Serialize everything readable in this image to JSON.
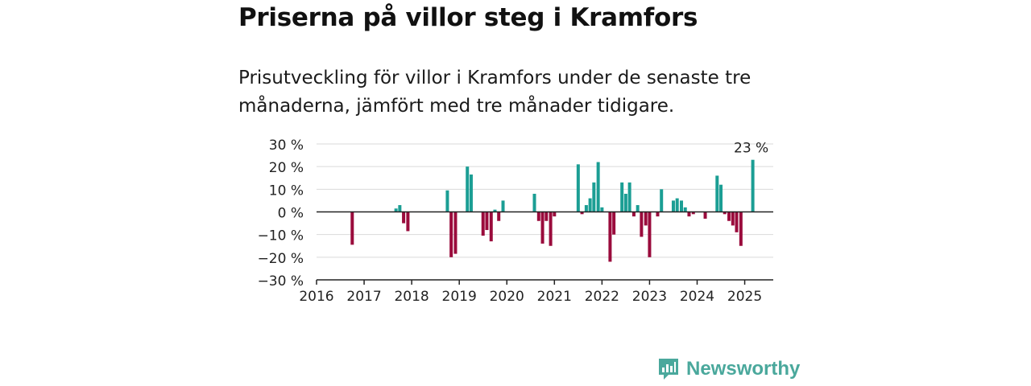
{
  "header": {
    "title": "Priserna på villor steg i Kramfors",
    "subtitle": "Prisutveckling för villor i Kramfors under de senaste tre månaderna, jämfört med tre månader tidigare."
  },
  "brand": {
    "name": "Newsworthy",
    "icon": "bar-chart-logo-icon",
    "color": "#4aa89c"
  },
  "colors": {
    "positive": "#1b9e94",
    "negative": "#9a0b3c",
    "grid": "#d9d9d9",
    "axis": "#222222"
  },
  "chart_data": {
    "type": "bar",
    "title": "Priserna på villor steg i Kramfors",
    "ylim": [
      -30,
      30
    ],
    "yticks": [
      30,
      20,
      10,
      0,
      -10,
      -20,
      -30
    ],
    "ytick_labels": [
      "30 %",
      "20 %",
      "10 %",
      "0 %",
      "−10 %",
      "−20 %",
      "−30 %"
    ],
    "xlim": [
      2016.0,
      2025.6
    ],
    "xticks": [
      "2016",
      "2017",
      "2018",
      "2019",
      "2020",
      "2021",
      "2022",
      "2023",
      "2024",
      "2025"
    ],
    "grid": true,
    "annotation": {
      "text": "23 %",
      "x": 2025.17,
      "y": 23
    },
    "points": [
      {
        "x": 2016.75,
        "y": -14.5
      },
      {
        "x": 2017.67,
        "y": 1.5
      },
      {
        "x": 2017.75,
        "y": 3
      },
      {
        "x": 2017.83,
        "y": -5
      },
      {
        "x": 2017.92,
        "y": -8.5
      },
      {
        "x": 2018.75,
        "y": 9.5
      },
      {
        "x": 2018.83,
        "y": -20
      },
      {
        "x": 2018.92,
        "y": -18.5
      },
      {
        "x": 2019.17,
        "y": 20
      },
      {
        "x": 2019.25,
        "y": 16.5
      },
      {
        "x": 2019.5,
        "y": -10.5
      },
      {
        "x": 2019.58,
        "y": -8
      },
      {
        "x": 2019.67,
        "y": -13
      },
      {
        "x": 2019.75,
        "y": 1
      },
      {
        "x": 2019.83,
        "y": -4
      },
      {
        "x": 2019.92,
        "y": 5
      },
      {
        "x": 2020.58,
        "y": 8
      },
      {
        "x": 2020.67,
        "y": -4
      },
      {
        "x": 2020.75,
        "y": -14
      },
      {
        "x": 2020.83,
        "y": -4
      },
      {
        "x": 2020.92,
        "y": -15
      },
      {
        "x": 2021.0,
        "y": -2
      },
      {
        "x": 2021.5,
        "y": 21
      },
      {
        "x": 2021.58,
        "y": -1
      },
      {
        "x": 2021.67,
        "y": 3
      },
      {
        "x": 2021.75,
        "y": 6
      },
      {
        "x": 2021.83,
        "y": 13
      },
      {
        "x": 2021.92,
        "y": 22
      },
      {
        "x": 2022.0,
        "y": 2
      },
      {
        "x": 2022.17,
        "y": -22
      },
      {
        "x": 2022.25,
        "y": -10
      },
      {
        "x": 2022.42,
        "y": 13
      },
      {
        "x": 2022.5,
        "y": 8
      },
      {
        "x": 2022.58,
        "y": 13
      },
      {
        "x": 2022.67,
        "y": -2
      },
      {
        "x": 2022.75,
        "y": 3
      },
      {
        "x": 2022.83,
        "y": -11
      },
      {
        "x": 2022.92,
        "y": -6
      },
      {
        "x": 2023.0,
        "y": -20
      },
      {
        "x": 2023.17,
        "y": -2
      },
      {
        "x": 2023.25,
        "y": 10
      },
      {
        "x": 2023.5,
        "y": 5
      },
      {
        "x": 2023.58,
        "y": 6
      },
      {
        "x": 2023.67,
        "y": 5
      },
      {
        "x": 2023.75,
        "y": 2
      },
      {
        "x": 2023.83,
        "y": -2
      },
      {
        "x": 2023.92,
        "y": -1
      },
      {
        "x": 2024.17,
        "y": -3
      },
      {
        "x": 2024.42,
        "y": 16
      },
      {
        "x": 2024.5,
        "y": 12
      },
      {
        "x": 2024.58,
        "y": -1
      },
      {
        "x": 2024.67,
        "y": -4
      },
      {
        "x": 2024.75,
        "y": -6
      },
      {
        "x": 2024.83,
        "y": -9
      },
      {
        "x": 2024.92,
        "y": -15
      },
      {
        "x": 2025.17,
        "y": 23
      }
    ]
  }
}
